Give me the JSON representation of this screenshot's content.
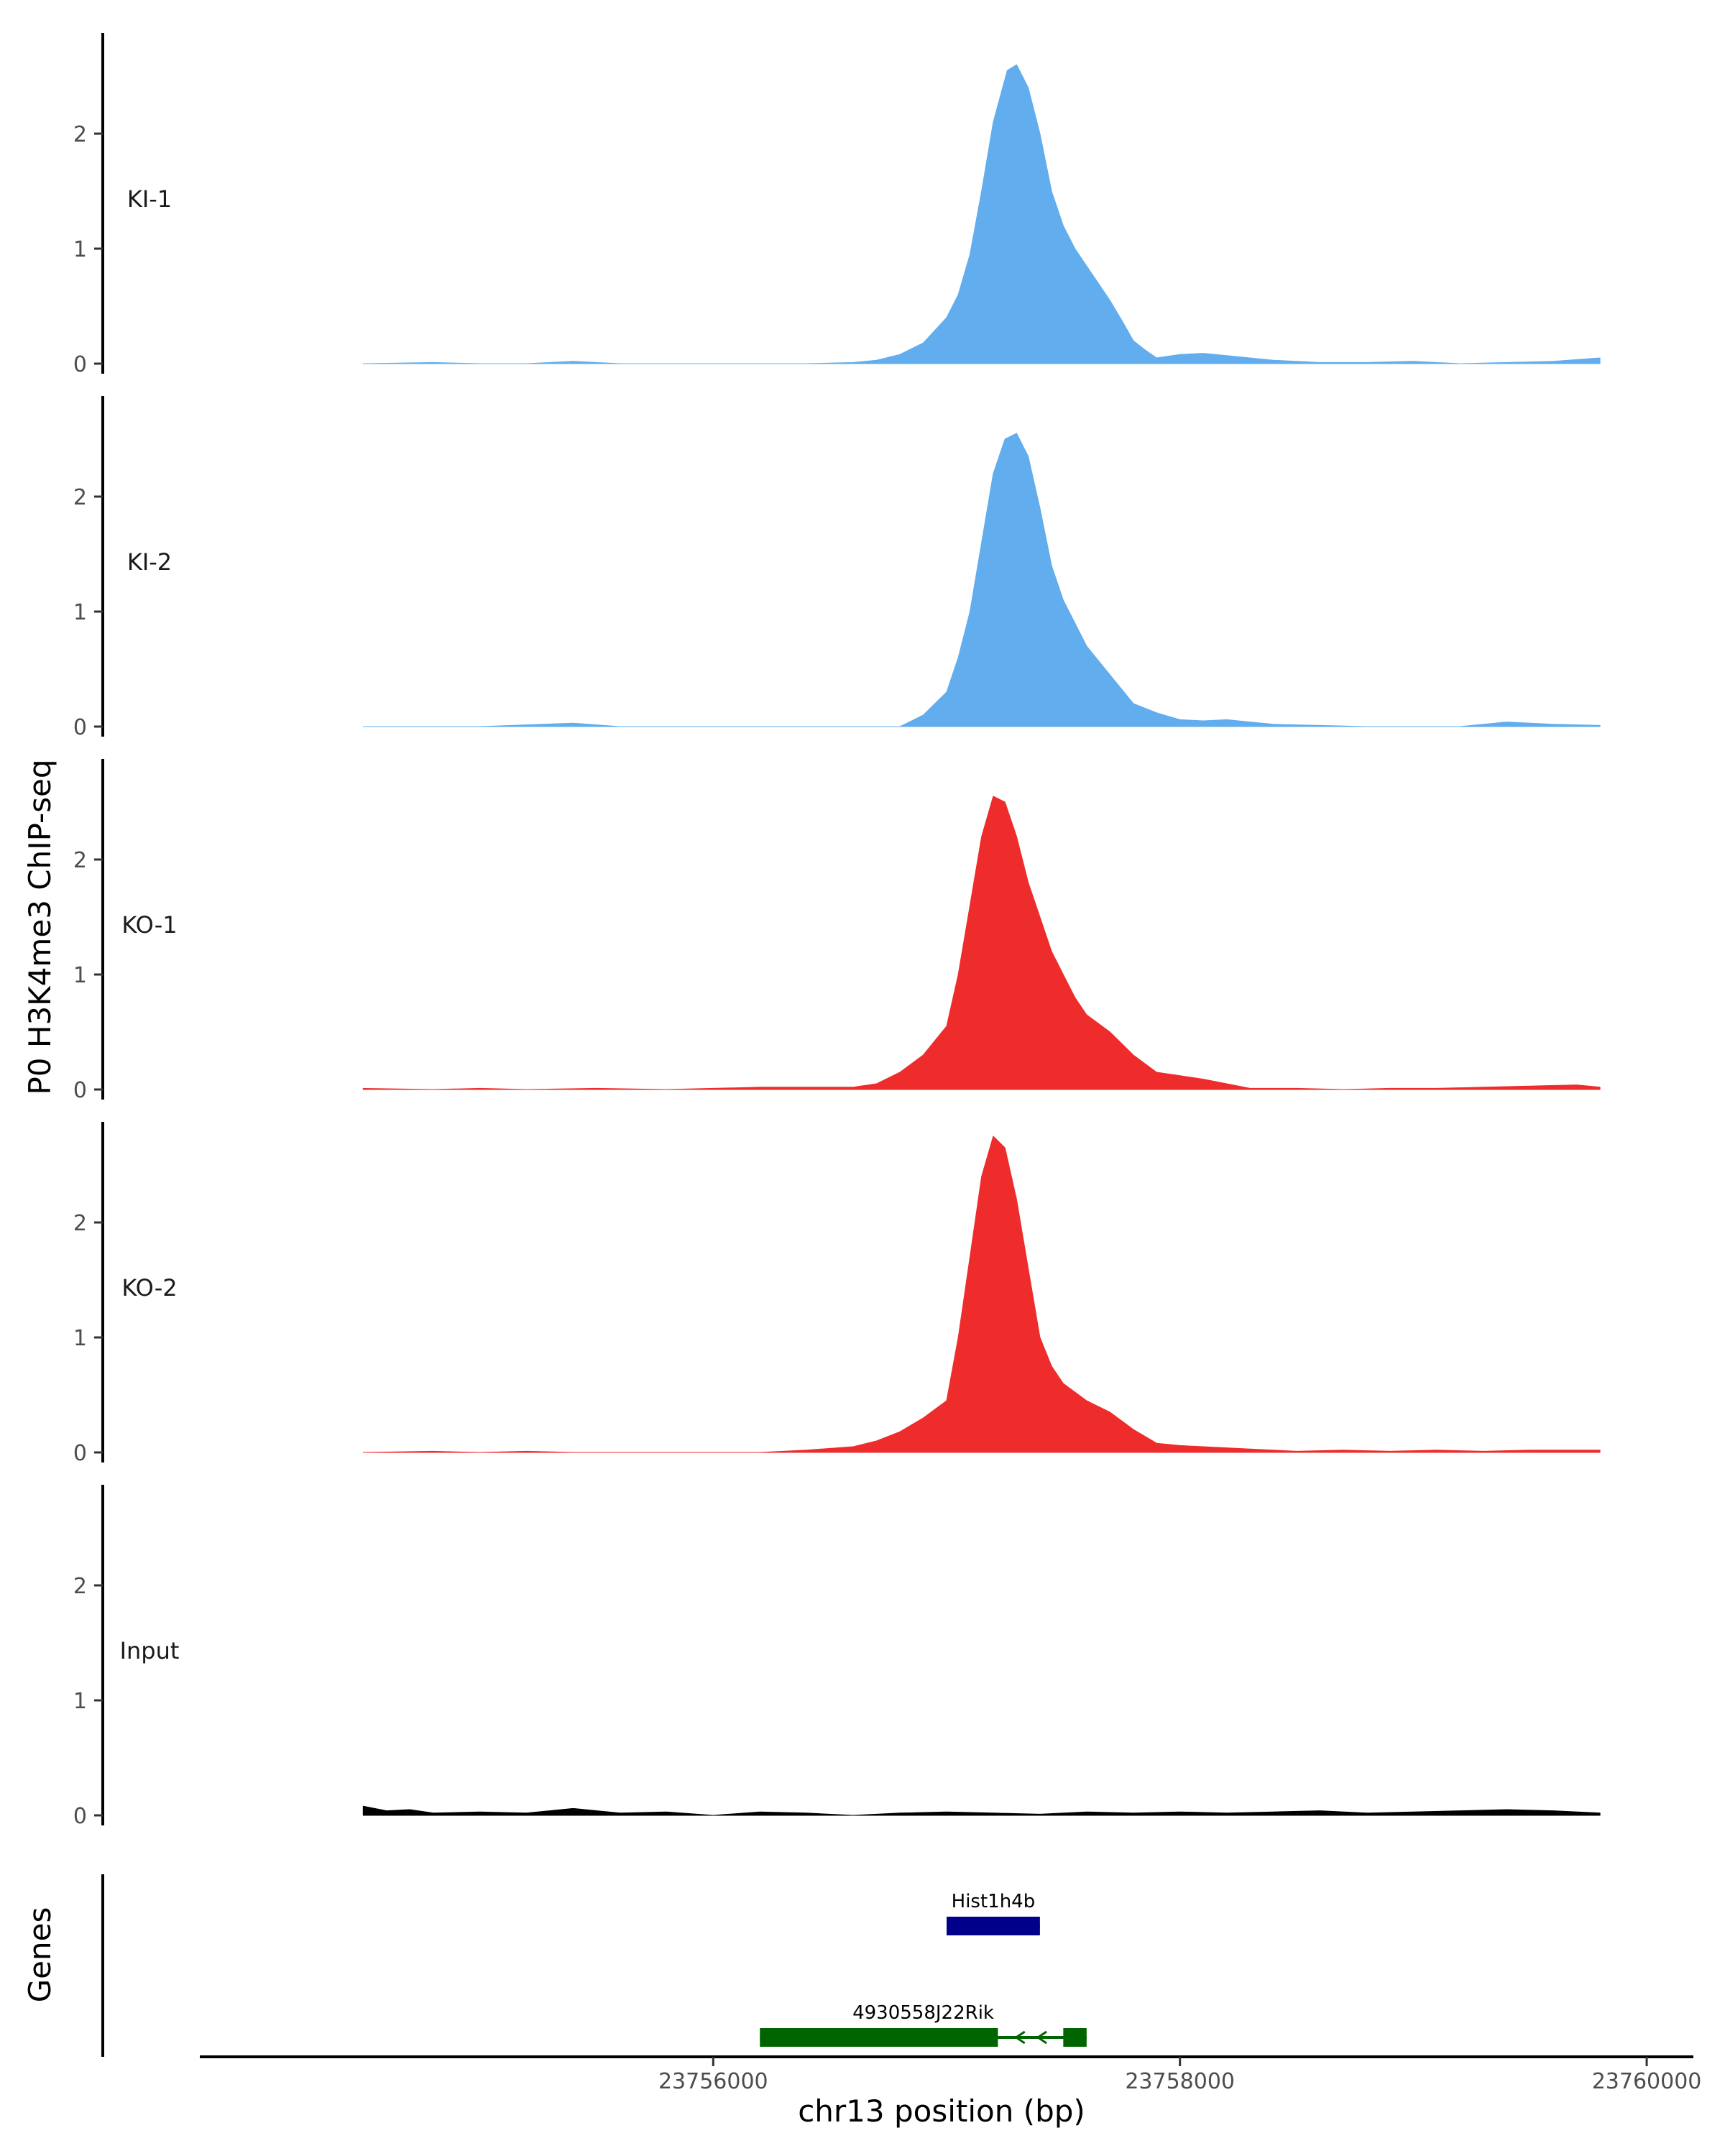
{
  "chart_data": {
    "type": "area",
    "ylabel": "P0 H3K4me3 ChIP-seq",
    "xlabel": "chr13 position (bp)",
    "genes_label": "Genes",
    "xlim": [
      23753800,
      23760200
    ],
    "x_data_range": [
      23754500,
      23759800
    ],
    "ylim": [
      0,
      2.9
    ],
    "y_ticks": [
      "0",
      "1",
      "2"
    ],
    "x_ticks": [
      {
        "value": 23756000,
        "label": "23756000"
      },
      {
        "value": 23758000,
        "label": "23758000"
      },
      {
        "value": 23760000,
        "label": "23760000"
      }
    ],
    "tracks": [
      {
        "name": "KI-1",
        "color": "#61ADEE",
        "points": [
          [
            23754500,
            0
          ],
          [
            23754800,
            0.01
          ],
          [
            23755000,
            0
          ],
          [
            23755200,
            0
          ],
          [
            23755400,
            0.02
          ],
          [
            23755600,
            0
          ],
          [
            23755800,
            0
          ],
          [
            23756000,
            0
          ],
          [
            23756200,
            0
          ],
          [
            23756400,
            0
          ],
          [
            23756600,
            0.01
          ],
          [
            23756700,
            0.03
          ],
          [
            23756800,
            0.08
          ],
          [
            23756900,
            0.18
          ],
          [
            23757000,
            0.4
          ],
          [
            23757050,
            0.6
          ],
          [
            23757100,
            0.95
          ],
          [
            23757150,
            1.5
          ],
          [
            23757200,
            2.1
          ],
          [
            23757260,
            2.55
          ],
          [
            23757300,
            2.6
          ],
          [
            23757350,
            2.4
          ],
          [
            23757400,
            2.0
          ],
          [
            23757450,
            1.5
          ],
          [
            23757500,
            1.2
          ],
          [
            23757550,
            1.0
          ],
          [
            23757600,
            0.85
          ],
          [
            23757700,
            0.55
          ],
          [
            23757750,
            0.38
          ],
          [
            23757800,
            0.2
          ],
          [
            23757850,
            0.12
          ],
          [
            23757900,
            0.05
          ],
          [
            23758000,
            0.08
          ],
          [
            23758100,
            0.09
          ],
          [
            23758200,
            0.07
          ],
          [
            23758400,
            0.03
          ],
          [
            23758600,
            0.01
          ],
          [
            23758800,
            0.01
          ],
          [
            23759000,
            0.02
          ],
          [
            23759200,
            0
          ],
          [
            23759400,
            0.01
          ],
          [
            23759600,
            0.02
          ],
          [
            23759800,
            0.05
          ]
        ]
      },
      {
        "name": "KI-2",
        "color": "#61ADEE",
        "points": [
          [
            23754500,
            0
          ],
          [
            23755000,
            0
          ],
          [
            23755400,
            0.03
          ],
          [
            23755600,
            0
          ],
          [
            23756000,
            0
          ],
          [
            23756400,
            0
          ],
          [
            23756600,
            0
          ],
          [
            23756800,
            0
          ],
          [
            23756900,
            0.1
          ],
          [
            23757000,
            0.3
          ],
          [
            23757050,
            0.6
          ],
          [
            23757100,
            1.0
          ],
          [
            23757150,
            1.6
          ],
          [
            23757200,
            2.2
          ],
          [
            23757250,
            2.5
          ],
          [
            23757300,
            2.55
          ],
          [
            23757350,
            2.35
          ],
          [
            23757400,
            1.9
          ],
          [
            23757450,
            1.4
          ],
          [
            23757500,
            1.1
          ],
          [
            23757550,
            0.9
          ],
          [
            23757600,
            0.7
          ],
          [
            23757700,
            0.45
          ],
          [
            23757800,
            0.2
          ],
          [
            23757900,
            0.12
          ],
          [
            23758000,
            0.06
          ],
          [
            23758100,
            0.05
          ],
          [
            23758200,
            0.06
          ],
          [
            23758300,
            0.04
          ],
          [
            23758400,
            0.02
          ],
          [
            23758600,
            0.01
          ],
          [
            23758800,
            0
          ],
          [
            23759000,
            0
          ],
          [
            23759200,
            0
          ],
          [
            23759400,
            0.04
          ],
          [
            23759600,
            0.02
          ],
          [
            23759800,
            0.01
          ]
        ]
      },
      {
        "name": "KO-1",
        "color": "#EE2C2C",
        "points": [
          [
            23754500,
            0.01
          ],
          [
            23754800,
            0
          ],
          [
            23755000,
            0.01
          ],
          [
            23755200,
            0
          ],
          [
            23755500,
            0.01
          ],
          [
            23755800,
            0
          ],
          [
            23756000,
            0.01
          ],
          [
            23756200,
            0.02
          ],
          [
            23756400,
            0.02
          ],
          [
            23756600,
            0.02
          ],
          [
            23756700,
            0.05
          ],
          [
            23756800,
            0.15
          ],
          [
            23756900,
            0.3
          ],
          [
            23757000,
            0.55
          ],
          [
            23757050,
            1.0
          ],
          [
            23757100,
            1.6
          ],
          [
            23757150,
            2.2
          ],
          [
            23757200,
            2.55
          ],
          [
            23757250,
            2.5
          ],
          [
            23757300,
            2.2
          ],
          [
            23757350,
            1.8
          ],
          [
            23757400,
            1.5
          ],
          [
            23757450,
            1.2
          ],
          [
            23757500,
            1.0
          ],
          [
            23757550,
            0.8
          ],
          [
            23757600,
            0.65
          ],
          [
            23757700,
            0.5
          ],
          [
            23757800,
            0.3
          ],
          [
            23757900,
            0.15
          ],
          [
            23758000,
            0.12
          ],
          [
            23758100,
            0.09
          ],
          [
            23758200,
            0.05
          ],
          [
            23758300,
            0.01
          ],
          [
            23758500,
            0.01
          ],
          [
            23758700,
            0
          ],
          [
            23758900,
            0.01
          ],
          [
            23759100,
            0.01
          ],
          [
            23759300,
            0.02
          ],
          [
            23759500,
            0.03
          ],
          [
            23759700,
            0.04
          ],
          [
            23759800,
            0.02
          ]
        ]
      },
      {
        "name": "KO-2",
        "color": "#EE2C2C",
        "points": [
          [
            23754500,
            0
          ],
          [
            23754800,
            0.01
          ],
          [
            23755000,
            0
          ],
          [
            23755200,
            0.01
          ],
          [
            23755400,
            0
          ],
          [
            23755800,
            0
          ],
          [
            23756200,
            0
          ],
          [
            23756400,
            0.02
          ],
          [
            23756600,
            0.05
          ],
          [
            23756700,
            0.1
          ],
          [
            23756800,
            0.18
          ],
          [
            23756900,
            0.3
          ],
          [
            23757000,
            0.45
          ],
          [
            23757050,
            1.0
          ],
          [
            23757100,
            1.7
          ],
          [
            23757150,
            2.4
          ],
          [
            23757200,
            2.75
          ],
          [
            23757250,
            2.65
          ],
          [
            23757300,
            2.2
          ],
          [
            23757350,
            1.6
          ],
          [
            23757400,
            1.0
          ],
          [
            23757450,
            0.75
          ],
          [
            23757500,
            0.6
          ],
          [
            23757600,
            0.45
          ],
          [
            23757700,
            0.35
          ],
          [
            23757800,
            0.2
          ],
          [
            23757900,
            0.08
          ],
          [
            23758000,
            0.06
          ],
          [
            23758100,
            0.05
          ],
          [
            23758300,
            0.03
          ],
          [
            23758500,
            0.01
          ],
          [
            23758700,
            0.02
          ],
          [
            23758900,
            0.01
          ],
          [
            23759100,
            0.02
          ],
          [
            23759300,
            0.01
          ],
          [
            23759500,
            0.02
          ],
          [
            23759800,
            0.02
          ]
        ]
      },
      {
        "name": "Input",
        "color": "#000000",
        "points": [
          [
            23754500,
            0.08
          ],
          [
            23754600,
            0.04
          ],
          [
            23754700,
            0.05
          ],
          [
            23754800,
            0.02
          ],
          [
            23755000,
            0.03
          ],
          [
            23755200,
            0.02
          ],
          [
            23755400,
            0.06
          ],
          [
            23755600,
            0.02
          ],
          [
            23755800,
            0.03
          ],
          [
            23756000,
            0
          ],
          [
            23756200,
            0.03
          ],
          [
            23756400,
            0.02
          ],
          [
            23756600,
            0
          ],
          [
            23756800,
            0.02
          ],
          [
            23757000,
            0.03
          ],
          [
            23757200,
            0.02
          ],
          [
            23757400,
            0.01
          ],
          [
            23757600,
            0.03
          ],
          [
            23757800,
            0.02
          ],
          [
            23758000,
            0.03
          ],
          [
            23758200,
            0.02
          ],
          [
            23758400,
            0.03
          ],
          [
            23758600,
            0.04
          ],
          [
            23758800,
            0.02
          ],
          [
            23759000,
            0.03
          ],
          [
            23759200,
            0.04
          ],
          [
            23759400,
            0.05
          ],
          [
            23759600,
            0.04
          ],
          [
            23759800,
            0.02
          ]
        ]
      }
    ],
    "genes": [
      {
        "name": "Hist1h4b",
        "start": 23757000,
        "end": 23757400,
        "color": "#00008B",
        "row": 1,
        "exons": [
          [
            23757000,
            23757400
          ]
        ]
      },
      {
        "name": "4930558J22Rik",
        "start": 23756200,
        "end": 23757600,
        "color": "#006400",
        "row": 2,
        "exons": [
          [
            23756200,
            23757220
          ],
          [
            23757500,
            23757600
          ]
        ]
      }
    ]
  }
}
